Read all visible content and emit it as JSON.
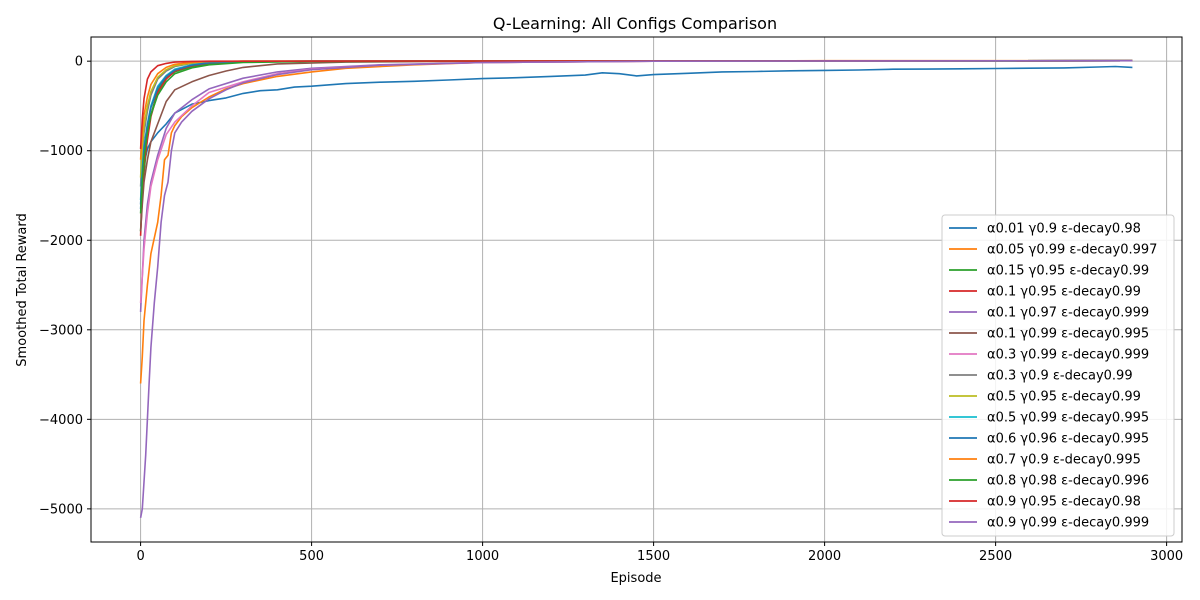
{
  "chart_data": {
    "type": "line",
    "title": "Q-Learning: All Configs Comparison",
    "xlabel": "Episode",
    "ylabel": "Smoothed Total Reward",
    "xlim": [
      -145,
      3045
    ],
    "ylim": [
      -5370,
      270
    ],
    "xticks": [
      0,
      500,
      1000,
      1500,
      2000,
      2500,
      3000
    ],
    "yticks": [
      0,
      -1000,
      -2000,
      -3000,
      -4000,
      -5000
    ],
    "grid": true,
    "legend_position": "bottom-right",
    "series": [
      {
        "name": "α0.01 γ0.9 ε-decay0.98",
        "color": "#1f77b4",
        "points": [
          [
            0,
            -1650
          ],
          [
            5,
            -1350
          ],
          [
            10,
            -1150
          ],
          [
            20,
            -980
          ],
          [
            30,
            -900
          ],
          [
            50,
            -800
          ],
          [
            75,
            -700
          ],
          [
            100,
            -580
          ],
          [
            150,
            -480
          ],
          [
            200,
            -440
          ],
          [
            250,
            -410
          ],
          [
            300,
            -360
          ],
          [
            350,
            -330
          ],
          [
            400,
            -320
          ],
          [
            450,
            -290
          ],
          [
            500,
            -280
          ],
          [
            600,
            -250
          ],
          [
            700,
            -235
          ],
          [
            800,
            -225
          ],
          [
            900,
            -210
          ],
          [
            1000,
            -195
          ],
          [
            1100,
            -185
          ],
          [
            1200,
            -170
          ],
          [
            1300,
            -155
          ],
          [
            1350,
            -130
          ],
          [
            1400,
            -140
          ],
          [
            1450,
            -165
          ],
          [
            1500,
            -150
          ],
          [
            1600,
            -135
          ],
          [
            1700,
            -120
          ],
          [
            1800,
            -115
          ],
          [
            1900,
            -108
          ],
          [
            2000,
            -103
          ],
          [
            2100,
            -98
          ],
          [
            2200,
            -90
          ],
          [
            2300,
            -88
          ],
          [
            2400,
            -85
          ],
          [
            2500,
            -82
          ],
          [
            2600,
            -78
          ],
          [
            2700,
            -75
          ],
          [
            2800,
            -65
          ],
          [
            2850,
            -60
          ],
          [
            2900,
            -70
          ]
        ]
      },
      {
        "name": "α0.05 γ0.99 ε-decay0.997",
        "color": "#ff7f0e",
        "points": [
          [
            0,
            -3600
          ],
          [
            5,
            -3300
          ],
          [
            10,
            -2900
          ],
          [
            20,
            -2500
          ],
          [
            30,
            -2150
          ],
          [
            50,
            -1800
          ],
          [
            60,
            -1500
          ],
          [
            70,
            -1100
          ],
          [
            80,
            -1050
          ],
          [
            90,
            -800
          ],
          [
            100,
            -720
          ],
          [
            120,
            -620
          ],
          [
            150,
            -520
          ],
          [
            200,
            -400
          ],
          [
            250,
            -310
          ],
          [
            300,
            -250
          ],
          [
            400,
            -170
          ],
          [
            500,
            -120
          ],
          [
            600,
            -80
          ],
          [
            800,
            -40
          ],
          [
            1000,
            -15
          ],
          [
            1500,
            0
          ],
          [
            2000,
            5
          ],
          [
            2900,
            5
          ]
        ]
      },
      {
        "name": "α0.15 γ0.95 ε-decay0.99",
        "color": "#2ca02c",
        "points": [
          [
            0,
            -1900
          ],
          [
            5,
            -1500
          ],
          [
            10,
            -1250
          ],
          [
            20,
            -850
          ],
          [
            30,
            -600
          ],
          [
            50,
            -330
          ],
          [
            75,
            -190
          ],
          [
            100,
            -120
          ],
          [
            150,
            -60
          ],
          [
            200,
            -30
          ],
          [
            300,
            -10
          ],
          [
            500,
            0
          ],
          [
            2900,
            5
          ]
        ]
      },
      {
        "name": "α0.1 γ0.95 ε-decay0.99",
        "color": "#d62728",
        "points": [
          [
            0,
            -1950
          ],
          [
            5,
            -1500
          ],
          [
            10,
            -1150
          ],
          [
            20,
            -880
          ],
          [
            30,
            -620
          ],
          [
            50,
            -350
          ],
          [
            75,
            -200
          ],
          [
            100,
            -110
          ],
          [
            150,
            -50
          ],
          [
            200,
            -20
          ],
          [
            300,
            -5
          ],
          [
            500,
            0
          ],
          [
            2900,
            5
          ]
        ]
      },
      {
        "name": "α0.1 γ0.97 ε-decay0.999",
        "color": "#9467bd",
        "points": [
          [
            0,
            -2800
          ],
          [
            5,
            -2400
          ],
          [
            10,
            -2000
          ],
          [
            20,
            -1600
          ],
          [
            30,
            -1350
          ],
          [
            50,
            -1050
          ],
          [
            75,
            -750
          ],
          [
            100,
            -580
          ],
          [
            150,
            -430
          ],
          [
            200,
            -310
          ],
          [
            300,
            -190
          ],
          [
            400,
            -120
          ],
          [
            500,
            -80
          ],
          [
            700,
            -40
          ],
          [
            1000,
            -15
          ],
          [
            1500,
            0
          ],
          [
            2900,
            5
          ]
        ]
      },
      {
        "name": "α0.1 γ0.99 ε-decay0.995",
        "color": "#8c564b",
        "points": [
          [
            0,
            -1900
          ],
          [
            5,
            -1600
          ],
          [
            10,
            -1350
          ],
          [
            20,
            -1100
          ],
          [
            30,
            -900
          ],
          [
            50,
            -700
          ],
          [
            75,
            -450
          ],
          [
            100,
            -320
          ],
          [
            150,
            -230
          ],
          [
            200,
            -160
          ],
          [
            250,
            -110
          ],
          [
            300,
            -70
          ],
          [
            400,
            -30
          ],
          [
            600,
            -10
          ],
          [
            1000,
            0
          ],
          [
            2900,
            5
          ]
        ]
      },
      {
        "name": "α0.3 γ0.99 ε-decay0.999",
        "color": "#e377c2",
        "points": [
          [
            0,
            -2700
          ],
          [
            5,
            -2400
          ],
          [
            10,
            -2100
          ],
          [
            20,
            -1700
          ],
          [
            30,
            -1400
          ],
          [
            50,
            -1100
          ],
          [
            75,
            -820
          ],
          [
            100,
            -680
          ],
          [
            150,
            -500
          ],
          [
            200,
            -350
          ],
          [
            300,
            -230
          ],
          [
            400,
            -140
          ],
          [
            500,
            -90
          ],
          [
            700,
            -45
          ],
          [
            1000,
            -15
          ],
          [
            1500,
            0
          ],
          [
            2900,
            5
          ]
        ]
      },
      {
        "name": "α0.3 γ0.9 ε-decay0.99",
        "color": "#7f7f7f",
        "points": [
          [
            0,
            -1400
          ],
          [
            5,
            -1050
          ],
          [
            10,
            -800
          ],
          [
            20,
            -560
          ],
          [
            30,
            -380
          ],
          [
            50,
            -200
          ],
          [
            75,
            -110
          ],
          [
            100,
            -60
          ],
          [
            150,
            -25
          ],
          [
            200,
            -10
          ],
          [
            300,
            0
          ],
          [
            2900,
            5
          ]
        ]
      },
      {
        "name": "α0.5 γ0.95 ε-decay0.99",
        "color": "#bcbd22",
        "points": [
          [
            0,
            -1300
          ],
          [
            5,
            -950
          ],
          [
            10,
            -720
          ],
          [
            20,
            -500
          ],
          [
            30,
            -340
          ],
          [
            50,
            -180
          ],
          [
            75,
            -95
          ],
          [
            100,
            -50
          ],
          [
            150,
            -20
          ],
          [
            200,
            -8
          ],
          [
            300,
            0
          ],
          [
            2900,
            5
          ]
        ]
      },
      {
        "name": "α0.5 γ0.99 ε-decay0.995",
        "color": "#17becf",
        "points": [
          [
            0,
            -1550
          ],
          [
            5,
            -1200
          ],
          [
            10,
            -950
          ],
          [
            20,
            -700
          ],
          [
            30,
            -500
          ],
          [
            50,
            -280
          ],
          [
            75,
            -160
          ],
          [
            100,
            -90
          ],
          [
            150,
            -40
          ],
          [
            200,
            -15
          ],
          [
            300,
            -3
          ],
          [
            500,
            0
          ],
          [
            2900,
            5
          ]
        ]
      },
      {
        "name": "α0.6 γ0.96 ε-decay0.995",
        "color": "#1f77b4",
        "points": [
          [
            0,
            -1600
          ],
          [
            5,
            -1250
          ],
          [
            10,
            -980
          ],
          [
            20,
            -720
          ],
          [
            30,
            -520
          ],
          [
            50,
            -300
          ],
          [
            75,
            -170
          ],
          [
            100,
            -100
          ],
          [
            150,
            -45
          ],
          [
            200,
            -18
          ],
          [
            300,
            -4
          ],
          [
            500,
            0
          ],
          [
            2900,
            5
          ]
        ]
      },
      {
        "name": "α0.7 γ0.9 ε-decay0.995",
        "color": "#ff7f0e",
        "points": [
          [
            0,
            -1100
          ],
          [
            5,
            -800
          ],
          [
            10,
            -600
          ],
          [
            20,
            -400
          ],
          [
            30,
            -260
          ],
          [
            50,
            -140
          ],
          [
            75,
            -70
          ],
          [
            100,
            -35
          ],
          [
            150,
            -12
          ],
          [
            200,
            -4
          ],
          [
            300,
            0
          ],
          [
            2900,
            5
          ]
        ]
      },
      {
        "name": "α0.8 γ0.98 ε-decay0.996",
        "color": "#2ca02c",
        "points": [
          [
            0,
            -1700
          ],
          [
            5,
            -1350
          ],
          [
            10,
            -1080
          ],
          [
            20,
            -800
          ],
          [
            30,
            -600
          ],
          [
            50,
            -380
          ],
          [
            75,
            -230
          ],
          [
            100,
            -140
          ],
          [
            150,
            -75
          ],
          [
            200,
            -40
          ],
          [
            300,
            -15
          ],
          [
            500,
            -3
          ],
          [
            800,
            0
          ],
          [
            2900,
            5
          ]
        ]
      },
      {
        "name": "α0.9 γ0.95 ε-decay0.98",
        "color": "#d62728",
        "points": [
          [
            0,
            -980
          ],
          [
            5,
            -650
          ],
          [
            10,
            -420
          ],
          [
            20,
            -200
          ],
          [
            30,
            -120
          ],
          [
            50,
            -50
          ],
          [
            75,
            -25
          ],
          [
            100,
            -10
          ],
          [
            150,
            -3
          ],
          [
            200,
            0
          ],
          [
            2900,
            5
          ]
        ]
      },
      {
        "name": "α0.9 γ0.99 ε-decay0.999",
        "color": "#9467bd",
        "points": [
          [
            0,
            -5100
          ],
          [
            5,
            -5000
          ],
          [
            10,
            -4700
          ],
          [
            15,
            -4400
          ],
          [
            20,
            -4000
          ],
          [
            25,
            -3600
          ],
          [
            30,
            -3200
          ],
          [
            40,
            -2700
          ],
          [
            50,
            -2300
          ],
          [
            60,
            -1800
          ],
          [
            70,
            -1500
          ],
          [
            80,
            -1350
          ],
          [
            90,
            -1000
          ],
          [
            100,
            -800
          ],
          [
            120,
            -680
          ],
          [
            150,
            -560
          ],
          [
            200,
            -420
          ],
          [
            250,
            -320
          ],
          [
            300,
            -240
          ],
          [
            400,
            -150
          ],
          [
            500,
            -95
          ],
          [
            700,
            -45
          ],
          [
            1000,
            -15
          ],
          [
            1500,
            0
          ],
          [
            2900,
            5
          ]
        ]
      }
    ]
  }
}
